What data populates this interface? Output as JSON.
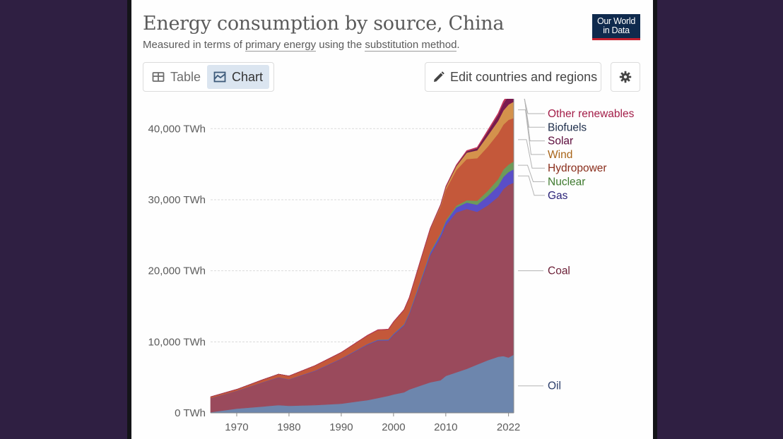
{
  "title": "Energy consumption by source, China",
  "subtitle": {
    "prefix": "Measured in terms of ",
    "link1": "primary energy",
    "middle": " using the ",
    "link2": "substitution method",
    "suffix": "."
  },
  "logo": {
    "line1": "Our World",
    "line2": "in Data"
  },
  "tabs": {
    "table": "Table",
    "chart": "Chart"
  },
  "edit_button": "Edit countries and regions",
  "chart_data": {
    "type": "area",
    "stacked": true,
    "title": "Energy consumption by source, China",
    "ylabel": "",
    "yunit": "TWh",
    "ylim": [
      0,
      44000
    ],
    "yticks": [
      0,
      10000,
      20000,
      30000,
      40000
    ],
    "ytick_labels": [
      "0 TWh",
      "10,000 TWh",
      "20,000 TWh",
      "30,000 TWh",
      "40,000 TWh"
    ],
    "xlim": [
      1965,
      2023
    ],
    "xticks": [
      1970,
      1980,
      1990,
      2000,
      2010,
      2022
    ],
    "xtick_labels": [
      "1970",
      "1980",
      "1990",
      "2000",
      "2010",
      "2022"
    ],
    "x": [
      1965,
      1970,
      1975,
      1978,
      1980,
      1985,
      1990,
      1995,
      1997,
      1999,
      2000,
      2002,
      2003,
      2005,
      2007,
      2009,
      2010,
      2012,
      2014,
      2016,
      2018,
      2020,
      2021,
      2022,
      2023
    ],
    "series": [
      {
        "name": "Oil",
        "color": "#6d86ad",
        "label_color": "#2c3e6b",
        "values": [
          100,
          600,
          900,
          1100,
          1000,
          1100,
          1300,
          1800,
          2100,
          2400,
          2600,
          2900,
          3300,
          3800,
          4300,
          4600,
          5200,
          5700,
          6200,
          6800,
          7400,
          7900,
          8000,
          7800,
          8200
        ]
      },
      {
        "name": "Coal",
        "color": "#9a4a5c",
        "label_color": "#6b1f36",
        "values": [
          2000,
          2500,
          3400,
          3900,
          3700,
          4800,
          6300,
          7800,
          8100,
          7800,
          8400,
          9400,
          10600,
          14200,
          17900,
          20100,
          21200,
          22500,
          22500,
          21500,
          21800,
          22500,
          23500,
          24300,
          24200
        ]
      },
      {
        "name": "Gas",
        "color": "#5a4ec8",
        "label_color": "#2a2278",
        "values": [
          10,
          20,
          40,
          40,
          40,
          60,
          60,
          80,
          90,
          110,
          120,
          140,
          160,
          230,
          330,
          440,
          530,
          720,
          900,
          1000,
          1300,
          1550,
          1700,
          1800,
          1900
        ]
      },
      {
        "name": "Nuclear",
        "color": "#6d9a5a",
        "label_color": "#3f7a2f",
        "values": [
          0,
          0,
          0,
          0,
          0,
          0,
          0,
          30,
          40,
          50,
          50,
          60,
          100,
          130,
          160,
          170,
          190,
          240,
          330,
          550,
          750,
          950,
          1050,
          1050,
          1100
        ]
      },
      {
        "name": "Hydropower",
        "color": "#c4583a",
        "label_color": "#8a2e1c",
        "values": [
          150,
          200,
          350,
          420,
          450,
          700,
          850,
          1200,
          1350,
          1400,
          1650,
          2000,
          2050,
          2700,
          3100,
          3700,
          4300,
          5000,
          5800,
          6000,
          6200,
          6400,
          6300,
          6300,
          6100
        ]
      },
      {
        "name": "Wind",
        "color": "#d4924c",
        "label_color": "#a86418",
        "values": [
          0,
          0,
          0,
          0,
          0,
          0,
          0,
          0,
          0,
          0,
          0,
          0,
          10,
          30,
          90,
          200,
          330,
          550,
          900,
          1100,
          1550,
          1800,
          2000,
          2150,
          2300
        ]
      },
      {
        "name": "Solar",
        "color": "#7a1a4e",
        "label_color": "#5b0a3a",
        "values": [
          0,
          0,
          0,
          0,
          0,
          0,
          0,
          0,
          0,
          0,
          0,
          0,
          0,
          0,
          0,
          10,
          20,
          40,
          100,
          200,
          450,
          700,
          900,
          1100,
          1400
        ]
      },
      {
        "name": "Biofuels",
        "color": "#1d2d4a",
        "label_color": "#1d2d4a",
        "values": [
          0,
          0,
          0,
          0,
          0,
          0,
          0,
          0,
          0,
          0,
          0,
          10,
          10,
          20,
          30,
          40,
          40,
          45,
          50,
          55,
          60,
          65,
          65,
          65,
          70
        ]
      },
      {
        "name": "Other renewables",
        "color": "#c0335a",
        "label_color": "#a31d48",
        "values": [
          0,
          0,
          0,
          0,
          0,
          10,
          20,
          30,
          30,
          30,
          40,
          40,
          40,
          60,
          60,
          70,
          80,
          100,
          150,
          180,
          250,
          300,
          350,
          400,
          450
        ]
      }
    ],
    "legend": [
      "Other renewables",
      "Biofuels",
      "Solar",
      "Wind",
      "Hydropower",
      "Nuclear",
      "Gas",
      "Coal",
      "Oil"
    ],
    "legend_placement": "right",
    "grid": true
  }
}
